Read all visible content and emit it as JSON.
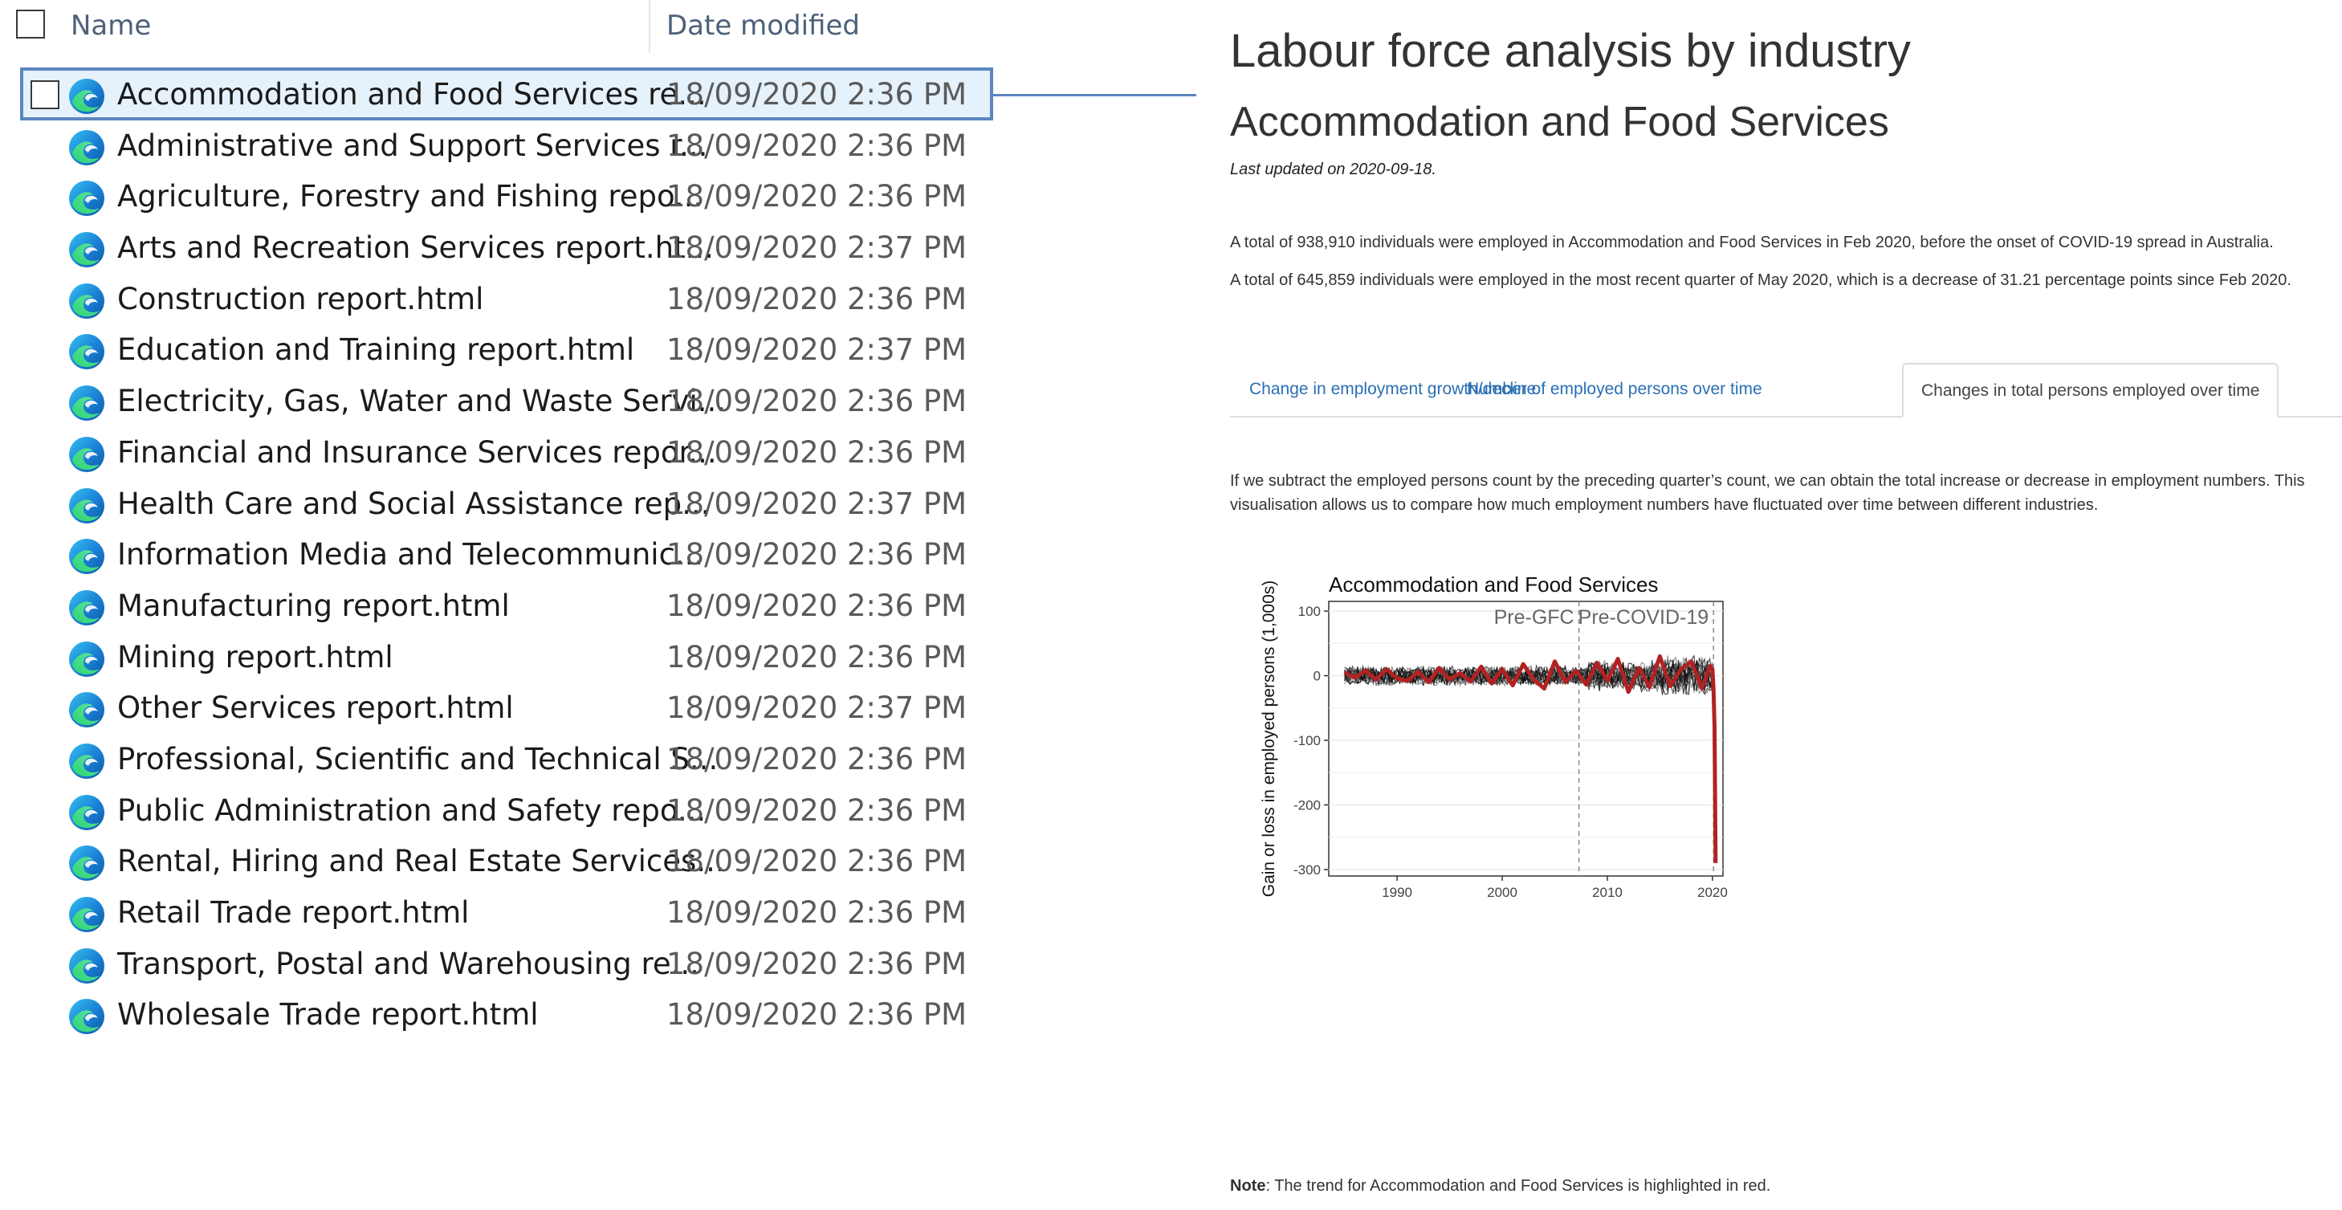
{
  "explorer": {
    "header": {
      "name": "Name",
      "date_modified": "Date modified"
    },
    "files": [
      {
        "name": "Accommodation and Food Services re...",
        "date": "18/09/2020 2:36 PM",
        "selected": true
      },
      {
        "name": "Administrative and Support Services r...",
        "date": "18/09/2020 2:36 PM"
      },
      {
        "name": "Agriculture, Forestry and Fishing repo...",
        "date": "18/09/2020 2:36 PM"
      },
      {
        "name": "Arts and Recreation Services report.ht...",
        "date": "18/09/2020 2:37 PM"
      },
      {
        "name": "Construction report.html",
        "date": "18/09/2020 2:36 PM"
      },
      {
        "name": "Education and Training report.html",
        "date": "18/09/2020 2:37 PM"
      },
      {
        "name": "Electricity, Gas, Water and Waste Servi...",
        "date": "18/09/2020 2:36 PM"
      },
      {
        "name": "Financial and Insurance Services repor...",
        "date": "18/09/2020 2:36 PM"
      },
      {
        "name": "Health Care and Social Assistance rep...",
        "date": "18/09/2020 2:37 PM"
      },
      {
        "name": "Information Media and Telecommunic...",
        "date": "18/09/2020 2:36 PM"
      },
      {
        "name": "Manufacturing report.html",
        "date": "18/09/2020 2:36 PM"
      },
      {
        "name": "Mining report.html",
        "date": "18/09/2020 2:36 PM"
      },
      {
        "name": "Other Services report.html",
        "date": "18/09/2020 2:37 PM"
      },
      {
        "name": "Professional, Scientific and Technical S...",
        "date": "18/09/2020 2:36 PM"
      },
      {
        "name": "Public Administration and Safety repo...",
        "date": "18/09/2020 2:36 PM"
      },
      {
        "name": "Rental, Hiring and Real Estate Services...",
        "date": "18/09/2020 2:36 PM"
      },
      {
        "name": "Retail Trade report.html",
        "date": "18/09/2020 2:36 PM"
      },
      {
        "name": "Transport, Postal and Warehousing re...",
        "date": "18/09/2020 2:36 PM"
      },
      {
        "name": "Wholesale Trade report.html",
        "date": "18/09/2020 2:36 PM"
      }
    ],
    "file_icon": "edge-icon"
  },
  "report": {
    "title": "Labour force analysis by industry",
    "subtitle": "Accommodation and Food Services",
    "updated": "Last updated on 2020-09-18.",
    "para1": "A total of 938,910 individuals were employed in Accommodation and Food Services in Feb 2020, before the onset of COVID-19 spread in Australia.",
    "para2": "A total of 645,859 individuals were employed in the most recent quarter of May 2020, which is a decrease of 31.21 percentage points since Feb 2020.",
    "tabs": [
      {
        "label": "Change in employment growth/decline",
        "active": false
      },
      {
        "label": "Number of employed persons over time",
        "active": false
      },
      {
        "label": "Changes in total persons employed over time",
        "active": true
      }
    ],
    "para3": "If we subtract the employed persons count by the preceding quarter’s count, we can obtain the total increase or decrease in employment numbers. This visualisation allows us to compare how much employment numbers have fluctuated over time between different industries.",
    "note_label": "Note",
    "note_text": ": The trend for Accommodation and Food Services is highlighted in red."
  },
  "chart_data": {
    "type": "line",
    "title": "Accommodation and Food Services",
    "xlabel": "",
    "ylabel": "Gain or loss in employed persons (1,000s)",
    "xlim": [
      1983.5,
      2021.0
    ],
    "ylim": [
      -310,
      115
    ],
    "x_ticks": [
      1990,
      2000,
      2010,
      2020
    ],
    "y_ticks": [
      100,
      0,
      -100,
      -200,
      -300
    ],
    "grid": true,
    "highlight_color": "#b22222",
    "other_color": "#000000",
    "annotations": [
      {
        "label": "Pre-GFC",
        "x": 2007.3
      },
      {
        "label": "Pre-COVID-19",
        "x": 2020.1
      }
    ],
    "series": [
      {
        "highlighted": true,
        "x": [
          1985,
          1986,
          1987,
          1988,
          1989,
          1990,
          1991,
          1992,
          1993,
          1994,
          1995,
          1996,
          1997,
          1998,
          1999,
          2000,
          2001,
          2002,
          2003,
          2004,
          2005,
          2006,
          2007,
          2008,
          2009,
          2010,
          2011,
          2012,
          2013,
          2014,
          2015,
          2016,
          2017,
          2018,
          2019,
          2019.75,
          2020.0,
          2020.1,
          2020.2,
          2020.3
        ],
        "values": [
          5,
          -3,
          8,
          -6,
          10,
          -4,
          -8,
          6,
          -10,
          12,
          -6,
          4,
          -9,
          14,
          -12,
          10,
          -15,
          18,
          -6,
          -20,
          22,
          -10,
          8,
          -14,
          20,
          -8,
          26,
          -25,
          12,
          -18,
          30,
          -16,
          10,
          22,
          -20,
          15,
          10,
          -20,
          -80,
          -290
        ]
      }
    ]
  }
}
